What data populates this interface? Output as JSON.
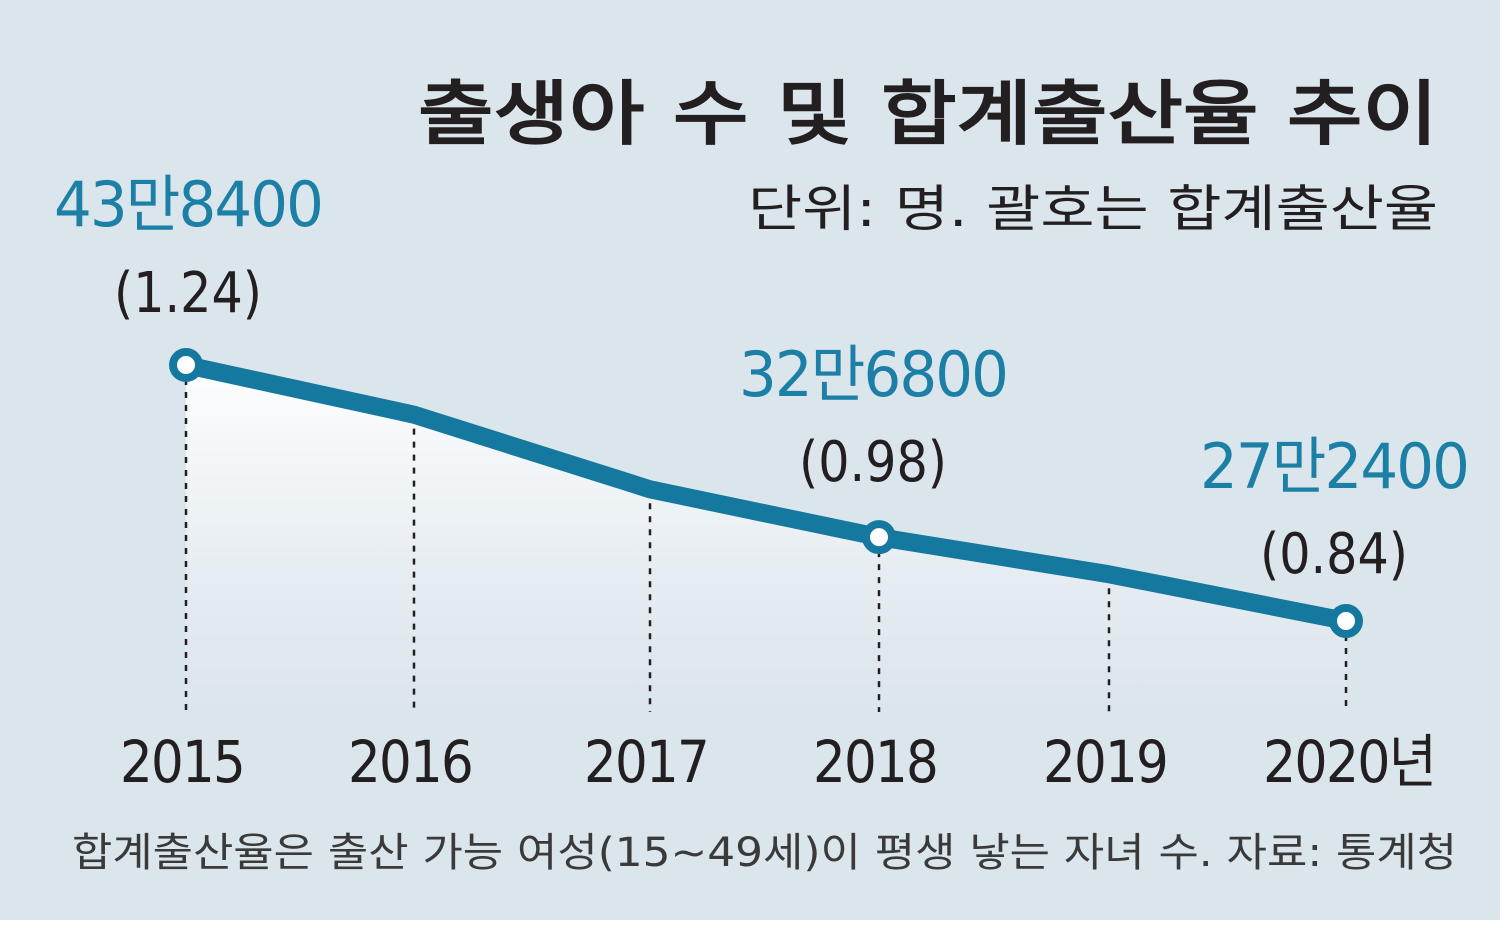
{
  "chart_data": {
    "type": "line",
    "title": "출생아 수 및 합계출산율 추이",
    "subtitle": "단위: 명. 괄호는 합계출산율",
    "categories": [
      "2015",
      "2016",
      "2017",
      "2018",
      "2019",
      "2020년"
    ],
    "series": [
      {
        "name": "출생아 수",
        "values": [
          438400,
          406200,
          357800,
          326800,
          302700,
          272400
        ]
      }
    ],
    "labels": [
      {
        "index": 0,
        "value_text": "43만8400",
        "rate_text": "(1.24)"
      },
      {
        "index": 3,
        "value_text": "32만6800",
        "rate_text": "(0.98)"
      },
      {
        "index": 5,
        "value_text": "27만2400",
        "rate_text": "(0.84)"
      }
    ],
    "xlabel": "",
    "ylabel": "",
    "grid": false,
    "footnote": "합계출산율은 출산 가능 여성(15~49세)이 평생 낳는 자녀 수. 자료: 통계청",
    "colors": {
      "background": "#dbe5ec",
      "line": "#15789e",
      "label_blue": "#1c7fa6",
      "text": "#231f20",
      "dashed": "#231f20"
    }
  }
}
